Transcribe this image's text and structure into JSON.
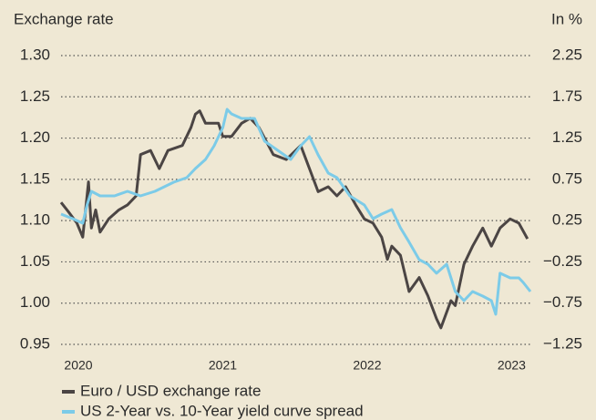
{
  "chart_data": {
    "type": "line",
    "y_label": "Exchange rate",
    "y2_label": "In %",
    "xlim": [
      2019.88,
      2023.13
    ],
    "xticks": [
      2020,
      2021,
      2022,
      2023
    ],
    "ylim": [
      0.95,
      1.3
    ],
    "yticks": [
      {
        "value": 1.3,
        "label": "1.30"
      },
      1.25,
      {
        "value": 1.2,
        "label": "1.20"
      },
      1.15,
      {
        "value": 1.1,
        "label": "1.10"
      },
      1.05,
      {
        "value": 1,
        "label": "1.00"
      },
      0.95
    ],
    "y2lim": [
      -1.25,
      2.25
    ],
    "y2ticks": [
      2.25,
      1.75,
      1.25,
      0.75,
      0.25,
      {
        "value": -0.25,
        "label": "−0.25"
      },
      {
        "value": -0.75,
        "label": "−0.75"
      },
      {
        "value": -1.25,
        "label": "−1.25"
      }
    ],
    "grid": true,
    "series": [
      {
        "name": "Euro / USD exchange rate",
        "color": "#4b4544",
        "axis": "y",
        "x": [
          2019.88,
          2019.93,
          2019.99,
          2020.03,
          2020.06,
          2020.07,
          2020.09,
          2020.12,
          2020.15,
          2020.21,
          2020.28,
          2020.34,
          2020.4,
          2020.43,
          2020.5,
          2020.56,
          2020.62,
          2020.72,
          2020.78,
          2020.81,
          2020.84,
          2020.88,
          2020.97,
          2021.0,
          2021.06,
          2021.13,
          2021.19,
          2021.25,
          2021.35,
          2021.44,
          2021.54,
          2021.6,
          2021.66,
          2021.73,
          2021.79,
          2021.85,
          2021.92,
          2021.98,
          2022.04,
          2022.1,
          2022.14,
          2022.17,
          2022.23,
          2022.29,
          2022.36,
          2022.42,
          2022.48,
          2022.51,
          2022.58,
          2022.61,
          2022.67,
          2022.73,
          2022.8,
          2022.86,
          2022.92,
          2022.99,
          2023.05,
          2023.11
        ],
        "values": [
          1.122,
          1.111,
          1.097,
          1.08,
          1.13,
          1.147,
          1.091,
          1.113,
          1.086,
          1.102,
          1.113,
          1.119,
          1.13,
          1.18,
          1.185,
          1.163,
          1.185,
          1.191,
          1.213,
          1.229,
          1.233,
          1.218,
          1.218,
          1.202,
          1.202,
          1.218,
          1.224,
          1.213,
          1.18,
          1.174,
          1.191,
          1.163,
          1.135,
          1.141,
          1.13,
          1.141,
          1.119,
          1.102,
          1.097,
          1.08,
          1.053,
          1.069,
          1.058,
          1.014,
          1.031,
          1.009,
          0.981,
          0.97,
          1.003,
          0.997,
          1.047,
          1.069,
          1.091,
          1.069,
          1.091,
          1.102,
          1.097,
          1.078
        ]
      },
      {
        "name": "US  2-Year vs. 10-Year yield curve spread",
        "color": "#7ccbe8",
        "axis": "y2",
        "x": [
          2019.88,
          2019.96,
          2020.03,
          2020.06,
          2020.09,
          2020.15,
          2020.25,
          2020.34,
          2020.43,
          2020.53,
          2020.66,
          2020.75,
          2020.81,
          2020.88,
          2020.94,
          2021.0,
          2021.03,
          2021.06,
          2021.13,
          2021.22,
          2021.29,
          2021.38,
          2021.47,
          2021.54,
          2021.6,
          2021.66,
          2021.73,
          2021.79,
          2021.88,
          2021.98,
          2022.04,
          2022.1,
          2022.17,
          2022.23,
          2022.29,
          2022.36,
          2022.42,
          2022.48,
          2022.55,
          2022.61,
          2022.67,
          2022.73,
          2022.8,
          2022.86,
          2022.89,
          2022.92,
          2022.99,
          2023.05,
          2023.08,
          2023.13
        ],
        "values": [
          0.329,
          0.274,
          0.218,
          0.439,
          0.605,
          0.55,
          0.55,
          0.605,
          0.55,
          0.605,
          0.715,
          0.77,
          0.881,
          0.991,
          1.157,
          1.378,
          1.599,
          1.543,
          1.488,
          1.488,
          1.212,
          1.102,
          0.991,
          1.157,
          1.267,
          1.047,
          0.826,
          0.77,
          0.55,
          0.439,
          0.274,
          0.329,
          0.384,
          0.163,
          -0.01,
          -0.223,
          -0.278,
          -0.388,
          -0.278,
          -0.61,
          -0.72,
          -0.61,
          -0.665,
          -0.72,
          -0.886,
          -0.388,
          -0.444,
          -0.444,
          -0.499,
          -0.61
        ]
      }
    ]
  }
}
